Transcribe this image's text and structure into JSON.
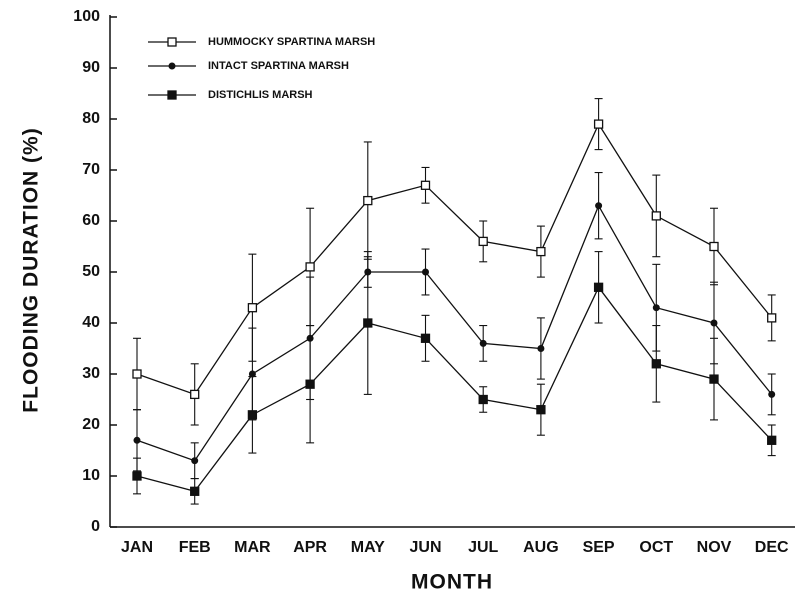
{
  "chart_data": {
    "type": "line",
    "xlabel": "MONTH",
    "ylabel": "FLOODING DURATION (%)",
    "categories": [
      "JAN",
      "FEB",
      "MAR",
      "APR",
      "MAY",
      "JUN",
      "JUL",
      "AUG",
      "SEP",
      "OCT",
      "NOV",
      "DEC"
    ],
    "ylim": [
      0,
      100
    ],
    "yticks": [
      0,
      10,
      20,
      30,
      40,
      50,
      60,
      70,
      80,
      90,
      100
    ],
    "legend": "upper-left",
    "series": [
      {
        "name": "HUMMOCKY SPARTINA MARSH",
        "color": "#111111",
        "marker": "open-square",
        "values": [
          30,
          26,
          43,
          51,
          64,
          67,
          56,
          54,
          79,
          61,
          55,
          41
        ],
        "errors": [
          7,
          6,
          10.5,
          11.5,
          11.5,
          3.5,
          4,
          5,
          5,
          8,
          7.5,
          4.5
        ]
      },
      {
        "name": "INTACT SPARTINA MARSH",
        "color": "#111111",
        "marker": "circle",
        "values": [
          17,
          13,
          30,
          37,
          50,
          50,
          36,
          35,
          63,
          43,
          40,
          26
        ],
        "errors": [
          6,
          3.5,
          9,
          12,
          3,
          4.5,
          3.5,
          6,
          6.5,
          8.5,
          8,
          4
        ]
      },
      {
        "name": "DISTICHLIS MARSH",
        "color": "#111111",
        "marker": "square",
        "values": [
          10,
          7,
          22,
          28,
          40,
          37,
          25,
          23,
          47,
          32,
          29,
          17
        ],
        "errors": [
          3.5,
          2.5,
          7.5,
          11.5,
          14,
          4.5,
          2.5,
          5,
          7,
          7.5,
          8,
          3
        ]
      }
    ]
  }
}
